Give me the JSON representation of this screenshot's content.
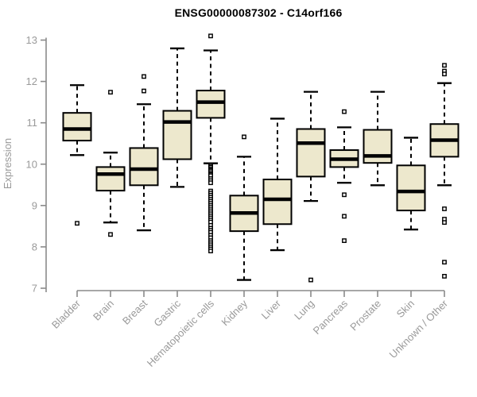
{
  "chart_data": {
    "type": "boxplot",
    "title": "ENSG00000087302 - C14orf166",
    "ylabel": "Expression",
    "xlabel": "",
    "ylim": [
      7,
      13
    ],
    "yticks": [
      7,
      8,
      9,
      10,
      11,
      12,
      13
    ],
    "grid": false,
    "legend": "none",
    "colors": {
      "box_fill": "#ede8cd",
      "box_stroke": "#000000",
      "median": "#000000",
      "whisker": "#000000",
      "outlier_stroke": "#000000",
      "outlier_fill": "#ffffff",
      "axis_line": "#8a8a8a",
      "tick_text": "#9a9a9a",
      "title_text": "#000000",
      "background": "#ffffff"
    },
    "categories": [
      "Bladder",
      "Brain",
      "Breast",
      "Gastric",
      "Hematopoietic cells",
      "Kidney",
      "Liver",
      "Lung",
      "Pancreas",
      "Prostate",
      "Skin",
      "Unknown / Other"
    ],
    "series": [
      {
        "category": "Bladder",
        "whisker_low": 10.22,
        "q1": 10.57,
        "median": 10.85,
        "q3": 11.24,
        "whisker_high": 11.91,
        "outliers": [
          8.57
        ]
      },
      {
        "category": "Brain",
        "whisker_low": 8.59,
        "q1": 9.36,
        "median": 9.76,
        "q3": 9.93,
        "whisker_high": 10.28,
        "outliers": [
          11.74,
          8.3
        ]
      },
      {
        "category": "Breast",
        "whisker_low": 8.4,
        "q1": 9.49,
        "median": 9.88,
        "q3": 10.39,
        "whisker_high": 11.45,
        "outliers": [
          12.12,
          11.77
        ]
      },
      {
        "category": "Gastric",
        "whisker_low": 9.45,
        "q1": 10.12,
        "median": 11.02,
        "q3": 11.29,
        "whisker_high": 12.8,
        "outliers": []
      },
      {
        "category": "Hematopoietic cells",
        "whisker_low": 10.02,
        "q1": 11.12,
        "median": 11.5,
        "q3": 11.78,
        "whisker_high": 12.75,
        "outliers": [
          13.1,
          9.98,
          9.95,
          9.92,
          9.88,
          9.85,
          9.82,
          9.78,
          9.75,
          9.72,
          9.65,
          9.6,
          9.55,
          9.35,
          9.3,
          9.25,
          9.2,
          9.15,
          9.1,
          9.05,
          9.0,
          8.95,
          8.9,
          8.85,
          8.8,
          8.75,
          8.7,
          8.65,
          8.6,
          8.52,
          8.45,
          8.4,
          8.35,
          8.28,
          8.22,
          8.15,
          8.1,
          8.05,
          8.0,
          7.95,
          7.9
        ]
      },
      {
        "category": "Kidney",
        "whisker_low": 7.2,
        "q1": 8.38,
        "median": 8.82,
        "q3": 9.24,
        "whisker_high": 10.18,
        "outliers": [
          10.66
        ]
      },
      {
        "category": "Liver",
        "whisker_low": 7.92,
        "q1": 8.55,
        "median": 9.15,
        "q3": 9.63,
        "whisker_high": 11.1,
        "outliers": []
      },
      {
        "category": "Lung",
        "whisker_low": 9.11,
        "q1": 9.7,
        "median": 10.51,
        "q3": 10.85,
        "whisker_high": 11.75,
        "outliers": [
          7.2
        ]
      },
      {
        "category": "Pancreas",
        "whisker_low": 9.55,
        "q1": 9.93,
        "median": 10.12,
        "q3": 10.34,
        "whisker_high": 10.89,
        "outliers": [
          11.27,
          9.26,
          8.74,
          8.15
        ]
      },
      {
        "category": "Prostate",
        "whisker_low": 9.49,
        "q1": 10.03,
        "median": 10.2,
        "q3": 10.83,
        "whisker_high": 11.75,
        "outliers": []
      },
      {
        "category": "Skin",
        "whisker_low": 8.42,
        "q1": 8.88,
        "median": 9.34,
        "q3": 9.97,
        "whisker_high": 10.64,
        "outliers": []
      },
      {
        "category": "Unknown / Other",
        "whisker_low": 9.49,
        "q1": 10.18,
        "median": 10.58,
        "q3": 10.97,
        "whisker_high": 11.96,
        "outliers": [
          12.39,
          12.25,
          12.18,
          8.92,
          8.67,
          8.59,
          7.63,
          7.29
        ]
      }
    ]
  }
}
